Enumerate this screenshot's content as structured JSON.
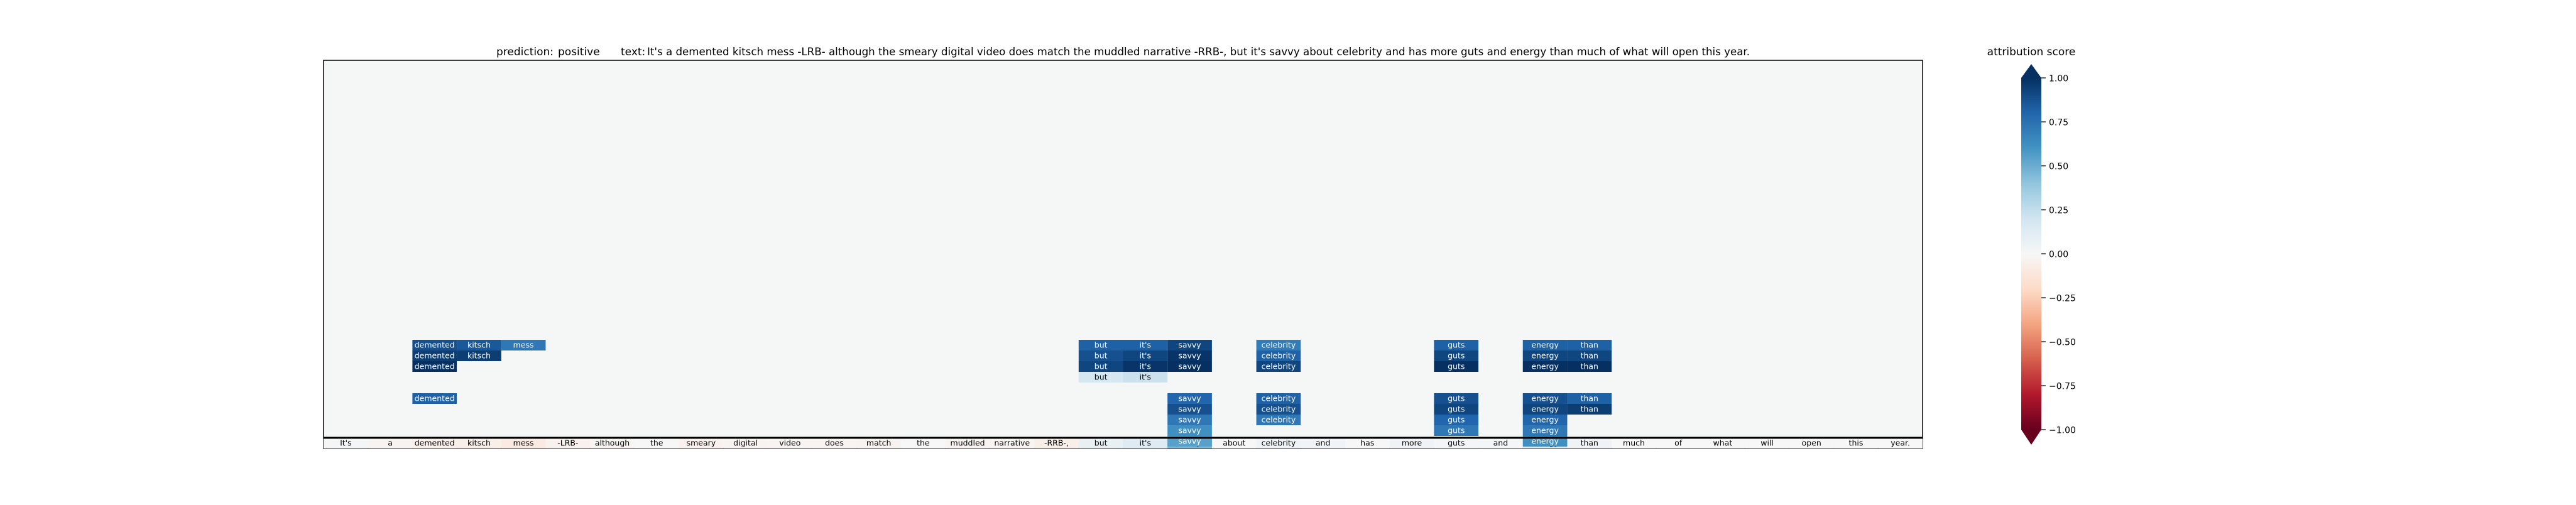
{
  "title": {
    "prediction_label": "prediction:",
    "prediction_value": "positive",
    "text_label": "text:",
    "text_value": "It's a demented kitsch mess -LRB- although the smeary digital video does match the muddled narrative -RRB-, but it's savvy about celebrity and has more guts and energy than much of what will open this year."
  },
  "chart_data": {
    "type": "heatmap",
    "tokens": [
      "It's",
      "a",
      "demented",
      "kitsch",
      "mess",
      "-LRB-",
      "although",
      "the",
      "smeary",
      "digital",
      "video",
      "does",
      "match",
      "the",
      "muddled",
      "narrative",
      "-RRB-,",
      "but",
      "it's",
      "savvy",
      "about",
      "celebrity",
      "and",
      "has",
      "more",
      "guts",
      "and",
      "energy",
      "than",
      "much",
      "of",
      "what",
      "will",
      "open",
      "this",
      "year."
    ],
    "base_row_scores": [
      0.02,
      -0.03,
      -0.05,
      -0.06,
      -0.09,
      -0.04,
      -0.02,
      0.0,
      -0.04,
      -0.03,
      -0.02,
      -0.02,
      -0.03,
      0.0,
      -0.03,
      -0.02,
      -0.06,
      0.08,
      0.13,
      0.45,
      0.0,
      0.05,
      0.03,
      0.0,
      0.04,
      0.02,
      0.02,
      0.12,
      0.04,
      0.0,
      0.0,
      0.0,
      0.0,
      0.0,
      0.0,
      0.0
    ],
    "highlight_rows": [
      [
        {
          "t": 2,
          "v": 0.88
        },
        {
          "t": 3,
          "v": 0.85
        },
        {
          "t": 4,
          "v": 0.72
        },
        {
          "t": 17,
          "v": 0.82
        },
        {
          "t": 18,
          "v": 0.82
        },
        {
          "t": 19,
          "v": 0.92
        },
        {
          "t": 21,
          "v": 0.7
        },
        {
          "t": 25,
          "v": 0.82
        },
        {
          "t": 27,
          "v": 0.82
        },
        {
          "t": 28,
          "v": 0.82
        }
      ],
      [
        {
          "t": 2,
          "v": 0.95
        },
        {
          "t": 3,
          "v": 0.95
        },
        {
          "t": 17,
          "v": 0.88
        },
        {
          "t": 18,
          "v": 0.92
        },
        {
          "t": 19,
          "v": 0.98
        },
        {
          "t": 21,
          "v": 0.82
        },
        {
          "t": 25,
          "v": 0.92
        },
        {
          "t": 27,
          "v": 0.92
        },
        {
          "t": 28,
          "v": 0.92
        }
      ],
      [
        {
          "t": 2,
          "v": 1.0
        },
        {
          "t": 17,
          "v": 0.92
        },
        {
          "t": 18,
          "v": 0.98
        },
        {
          "t": 19,
          "v": 1.0
        },
        {
          "t": 21,
          "v": 0.92
        },
        {
          "t": 25,
          "v": 1.0
        },
        {
          "t": 27,
          "v": 1.0
        },
        {
          "t": 28,
          "v": 1.0
        }
      ],
      [
        {
          "t": 17,
          "v": 0.18
        },
        {
          "t": 18,
          "v": 0.22
        }
      ],
      [],
      [
        {
          "t": 2,
          "v": 0.82
        },
        {
          "t": 19,
          "v": 0.8
        },
        {
          "t": 21,
          "v": 0.82
        },
        {
          "t": 25,
          "v": 0.88
        },
        {
          "t": 27,
          "v": 0.88
        },
        {
          "t": 28,
          "v": 0.82
        }
      ],
      [
        {
          "t": 19,
          "v": 0.88
        },
        {
          "t": 21,
          "v": 0.88
        },
        {
          "t": 25,
          "v": 0.92
        },
        {
          "t": 27,
          "v": 0.92
        },
        {
          "t": 28,
          "v": 0.95
        }
      ],
      [
        {
          "t": 19,
          "v": 0.72
        },
        {
          "t": 21,
          "v": 0.72
        },
        {
          "t": 25,
          "v": 0.8
        },
        {
          "t": 27,
          "v": 0.8
        }
      ],
      [
        {
          "t": 19,
          "v": 0.62
        },
        {
          "t": 25,
          "v": 0.72
        },
        {
          "t": 27,
          "v": 0.72
        }
      ],
      [
        {
          "t": 19,
          "v": 0.55
        },
        {
          "t": 27,
          "v": 0.62
        }
      ]
    ],
    "colorbar": {
      "label": "attribution score",
      "range": [
        -1.0,
        1.0
      ],
      "ticks": [
        "1.00",
        "0.75",
        "0.50",
        "0.25",
        "0.00",
        "−0.25",
        "−0.50",
        "−0.75",
        "−1.00"
      ],
      "tick_values": [
        1.0,
        0.75,
        0.5,
        0.25,
        0.0,
        -0.25,
        -0.5,
        -0.75,
        -1.0
      ]
    },
    "colormap": "RdBu",
    "background_color": "#f5f6f6"
  }
}
